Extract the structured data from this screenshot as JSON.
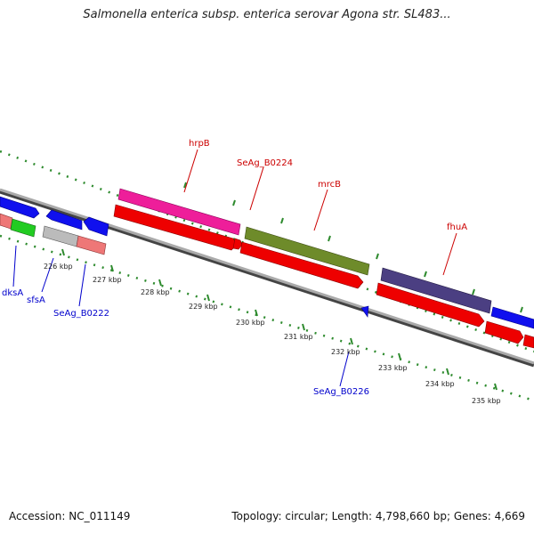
{
  "title": "Salmonella enterica subsp. enterica serovar Agona str. SL483...",
  "footer": {
    "accession": "Accession: NC_011149",
    "summary": "Topology: circular; Length: 4,798,660 bp; Genes: 4,669"
  },
  "colors": {
    "backbone": "#888888",
    "tick": "#2e8b2e",
    "cds_forward": "#ee0000",
    "label_red": "#cc0000",
    "label_blue": "#0000cc"
  },
  "ticks": [
    "226 kbp",
    "227 kbp",
    "228 kbp",
    "229 kbp",
    "230 kbp",
    "231 kbp",
    "232 kbp",
    "233 kbp",
    "234 kbp",
    "235 kbp"
  ],
  "genes": [
    {
      "name": "dksA",
      "color": "blue"
    },
    {
      "name": "sfsA",
      "color": "blue"
    },
    {
      "name": "SeAg_B0222",
      "color": "blue"
    },
    {
      "name": "hrpB",
      "color": "red"
    },
    {
      "name": "SeAg_B0224",
      "color": "red"
    },
    {
      "name": "mrcB",
      "color": "red"
    },
    {
      "name": "fhuA",
      "color": "red"
    },
    {
      "name": "SeAg_B0226",
      "color": "blue"
    }
  ]
}
